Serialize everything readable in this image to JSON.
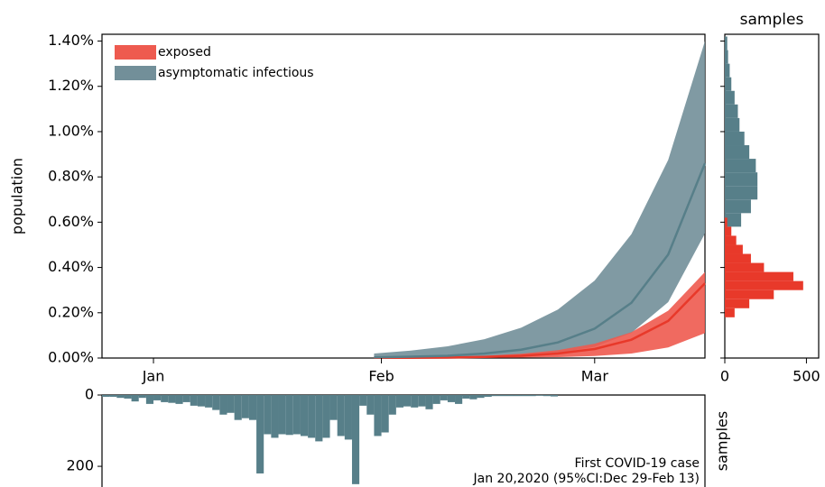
{
  "chart_data": [
    {
      "type": "band",
      "ylabel": "population",
      "legend": "upper left",
      "xlim": [
        -7,
        75
      ],
      "xticks": [
        {
          "value": 0,
          "label": "Jan"
        },
        {
          "value": 31,
          "label": "Feb"
        },
        {
          "value": 60,
          "label": "Mar"
        }
      ],
      "ylim": [
        0,
        1.43
      ],
      "yticks": [
        {
          "value": 0,
          "label": "0.00%"
        },
        {
          "value": 0.2,
          "label": "0.20%"
        },
        {
          "value": 0.4,
          "label": "0.40%"
        },
        {
          "value": 0.6,
          "label": "0.60%"
        },
        {
          "value": 0.8,
          "label": "0.80%"
        },
        {
          "value": 1.0,
          "label": "1.00%"
        },
        {
          "value": 1.2,
          "label": "1.20%"
        },
        {
          "value": 1.4,
          "label": "1.40%"
        }
      ],
      "x": [
        30,
        35,
        40,
        45,
        50,
        55,
        60,
        65,
        70,
        75
      ],
      "series": [
        {
          "name": "exposed",
          "color": "#ee5a4f",
          "line_color": "#e8392a",
          "values": [
            0.001,
            0.001,
            0.002,
            0.005,
            0.01,
            0.02,
            0.04,
            0.081,
            0.164,
            0.33
          ],
          "lower": [
            0,
            0,
            0,
            0.001,
            0.002,
            0.004,
            0.009,
            0.02,
            0.047,
            0.11
          ],
          "upper": [
            0.002,
            0.003,
            0.006,
            0.01,
            0.019,
            0.035,
            0.063,
            0.114,
            0.209,
            0.38
          ]
        },
        {
          "name": "asymptomatic infectious",
          "color": "#728f99",
          "line_color": "#577f89",
          "values": [
            0.003,
            0.006,
            0.01,
            0.02,
            0.037,
            0.069,
            0.13,
            0.244,
            0.457,
            0.86
          ],
          "lower": [
            0,
            0.001,
            0.002,
            0.005,
            0.01,
            0.022,
            0.05,
            0.111,
            0.247,
            0.55
          ],
          "upper": [
            0.02,
            0.033,
            0.052,
            0.083,
            0.134,
            0.214,
            0.342,
            0.547,
            0.875,
            1.4
          ]
        }
      ]
    },
    {
      "type": "histogram",
      "orientation": "horizontal",
      "title": "samples",
      "xlim": [
        0,
        575
      ],
      "xticks": [
        0,
        500
      ],
      "ylim": [
        0,
        1.43
      ],
      "yticks": [
        0,
        0.2,
        0.4,
        0.6,
        0.8,
        1.0,
        1.2,
        1.4
      ],
      "series": [
        {
          "color": "#577f89",
          "bins": [
            0.58,
            0.64,
            0.7,
            0.76,
            0.82,
            0.88,
            0.94,
            1.0,
            1.06,
            1.12,
            1.18,
            1.24,
            1.3,
            1.36,
            1.42
          ],
          "counts": [
            100,
            160,
            200,
            200,
            190,
            150,
            120,
            90,
            80,
            60,
            40,
            30,
            20,
            15
          ]
        },
        {
          "color": "#e8392a",
          "bins": [
            0.18,
            0.22,
            0.26,
            0.3,
            0.34,
            0.38,
            0.42,
            0.46,
            0.5,
            0.54,
            0.58,
            0.62
          ],
          "counts": [
            60,
            150,
            300,
            480,
            420,
            240,
            160,
            110,
            70,
            40,
            15
          ]
        }
      ]
    },
    {
      "type": "histogram",
      "orientation": "vertical",
      "ylabel": "samples",
      "inverted": true,
      "xlim": [
        -7,
        75
      ],
      "ylim": [
        0,
        258
      ],
      "yticks": [
        0,
        200
      ],
      "color": "#577f89",
      "bins": [
        -7,
        -6,
        -5,
        -4,
        -3,
        -2,
        -1,
        0,
        1,
        2,
        3,
        4,
        5,
        6,
        7,
        8,
        9,
        10,
        11,
        12,
        13,
        14,
        15,
        16,
        17,
        18,
        19,
        20,
        21,
        22,
        23,
        24,
        25,
        26,
        27,
        28,
        29,
        30,
        31,
        32,
        33,
        34,
        35,
        36,
        37,
        38,
        39,
        40,
        41,
        42,
        43,
        44,
        45,
        46,
        47,
        48,
        49,
        50,
        51,
        52,
        53,
        54,
        55
      ],
      "counts": [
        5,
        5,
        8,
        10,
        18,
        8,
        25,
        15,
        20,
        22,
        25,
        20,
        30,
        32,
        35,
        42,
        55,
        50,
        70,
        65,
        70,
        220,
        110,
        120,
        110,
        112,
        110,
        115,
        120,
        130,
        120,
        70,
        115,
        125,
        250,
        30,
        55,
        115,
        105,
        55,
        35,
        32,
        35,
        32,
        40,
        25,
        15,
        20,
        25,
        10,
        12,
        8,
        5,
        3,
        3,
        3,
        3,
        3,
        3,
        2,
        3,
        4
      ],
      "annotation": [
        "First COVID-19 case",
        "Jan 20,2020 (95%CI:Dec 29-Feb 13)"
      ]
    }
  ]
}
